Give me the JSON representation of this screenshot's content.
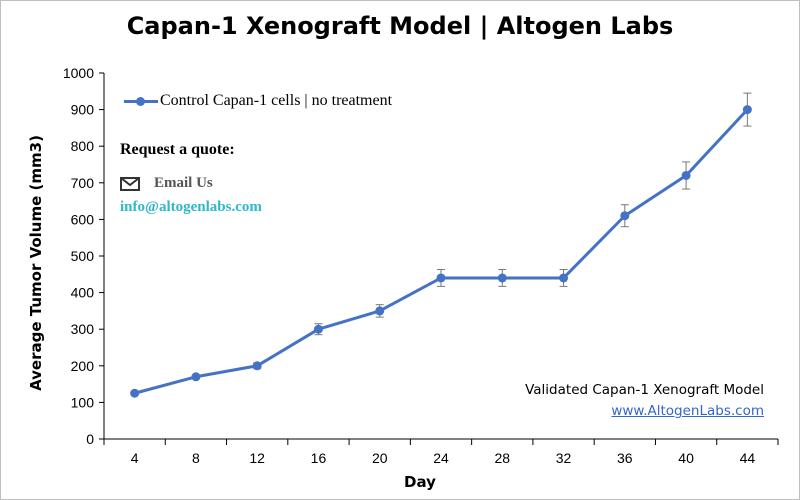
{
  "title": "Capan-1 Xenograft Model | Altogen Labs",
  "request_quote": "Request a quote:",
  "email_label": "Email Us",
  "email_address": "info@altogenlabs.com",
  "validated_text": "Validated Capan-1 Xenograft Model",
  "website": "www.AltogenLabs.com",
  "colors": {
    "series": "#4472c4",
    "email": "#2fb8c6",
    "link": "#3366cc"
  },
  "chart_data": {
    "type": "line",
    "title": "Capan-1 Xenograft Model | Altogen Labs",
    "xlabel": "Day",
    "ylabel": "Average Tumor Volume (mm3)",
    "x": [
      4,
      8,
      12,
      16,
      20,
      24,
      28,
      32,
      36,
      40,
      44
    ],
    "ylim": [
      0,
      1000
    ],
    "yticks": [
      0,
      100,
      200,
      300,
      400,
      500,
      600,
      700,
      800,
      900,
      1000
    ],
    "grid": false,
    "legend_position": "top-left",
    "series": [
      {
        "name": "Control Capan-1 cells | no treatment",
        "color": "#4472c4",
        "values": [
          125,
          170,
          200,
          300,
          350,
          440,
          440,
          440,
          610,
          720,
          900
        ],
        "error": [
          0,
          0,
          8,
          15,
          17,
          23,
          23,
          23,
          30,
          37,
          45
        ]
      }
    ]
  }
}
